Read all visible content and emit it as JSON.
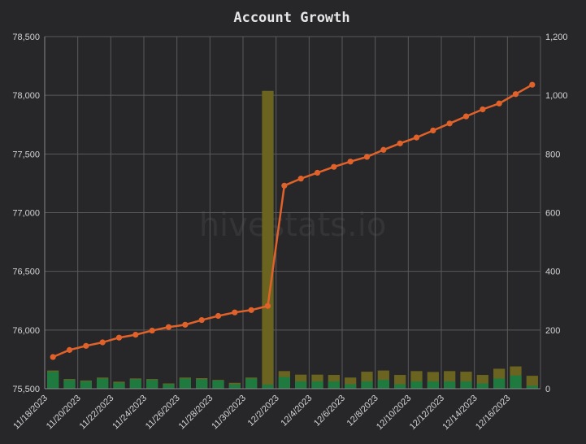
{
  "chart_data": {
    "type": "bar+line",
    "title": "Account Growth",
    "watermark": "hivestats.io",
    "categories": [
      "11/18/2023",
      "11/19/2023",
      "11/20/2023",
      "11/21/2023",
      "11/22/2023",
      "11/23/2023",
      "11/24/2023",
      "11/25/2023",
      "11/26/2023",
      "11/27/2023",
      "11/28/2023",
      "11/29/2023",
      "11/30/2023",
      "12/1/2023",
      "12/2/2023",
      "12/3/2023",
      "12/4/2023",
      "12/5/2023",
      "12/6/2023",
      "12/7/2023",
      "12/8/2023",
      "12/9/2023",
      "12/10/2023",
      "12/11/2023",
      "12/12/2023",
      "12/13/2023",
      "12/14/2023",
      "12/15/2023",
      "12/16/2023",
      "12/17/2023"
    ],
    "x_tick_labels": [
      "11/18/2023",
      "11/20/2023",
      "11/22/2023",
      "11/24/2023",
      "11/26/2023",
      "11/28/2023",
      "11/30/2023",
      "12/2/2023",
      "12/4/2023",
      "12/6/2023",
      "12/8/2023",
      "12/10/2023",
      "12/12/2023",
      "12/14/2023",
      "12/16/2023"
    ],
    "left_axis": {
      "ylim": [
        75500,
        78500
      ],
      "ticks": [
        "75,500",
        "76,000",
        "76,500",
        "77,000",
        "77,500",
        "78,000",
        "78,500"
      ]
    },
    "right_axis": {
      "ylim": [
        0,
        1200
      ],
      "ticks": [
        "0",
        "200",
        "400",
        "600",
        "800",
        "1,000",
        "1,200"
      ]
    },
    "grid": true,
    "series": [
      {
        "axis": "left",
        "type": "line",
        "color": "#e0622a",
        "values": [
          75770,
          75830,
          75865,
          75895,
          75935,
          75960,
          75995,
          76025,
          76045,
          76085,
          76120,
          76150,
          76170,
          76205,
          77230,
          77290,
          77340,
          77390,
          77435,
          77475,
          77535,
          77590,
          77640,
          77700,
          77760,
          77820,
          77880,
          77930,
          78010,
          78090
        ]
      },
      {
        "axis": "right",
        "type": "bar",
        "color": "#6b6420",
        "values": [
          62,
          33,
          28,
          38,
          24,
          35,
          33,
          18,
          38,
          36,
          30,
          20,
          38,
          1015,
          60,
          48,
          48,
          47,
          38,
          58,
          62,
          47,
          60,
          57,
          60,
          58,
          47,
          68,
          76,
          44
        ]
      },
      {
        "axis": "right",
        "type": "bar",
        "color": "#1f7a3f",
        "values": [
          58,
          30,
          25,
          35,
          20,
          32,
          30,
          15,
          35,
          32,
          28,
          15,
          35,
          14,
          40,
          25,
          25,
          25,
          15,
          25,
          30,
          15,
          25,
          25,
          25,
          25,
          18,
          35,
          45,
          10
        ]
      }
    ]
  }
}
